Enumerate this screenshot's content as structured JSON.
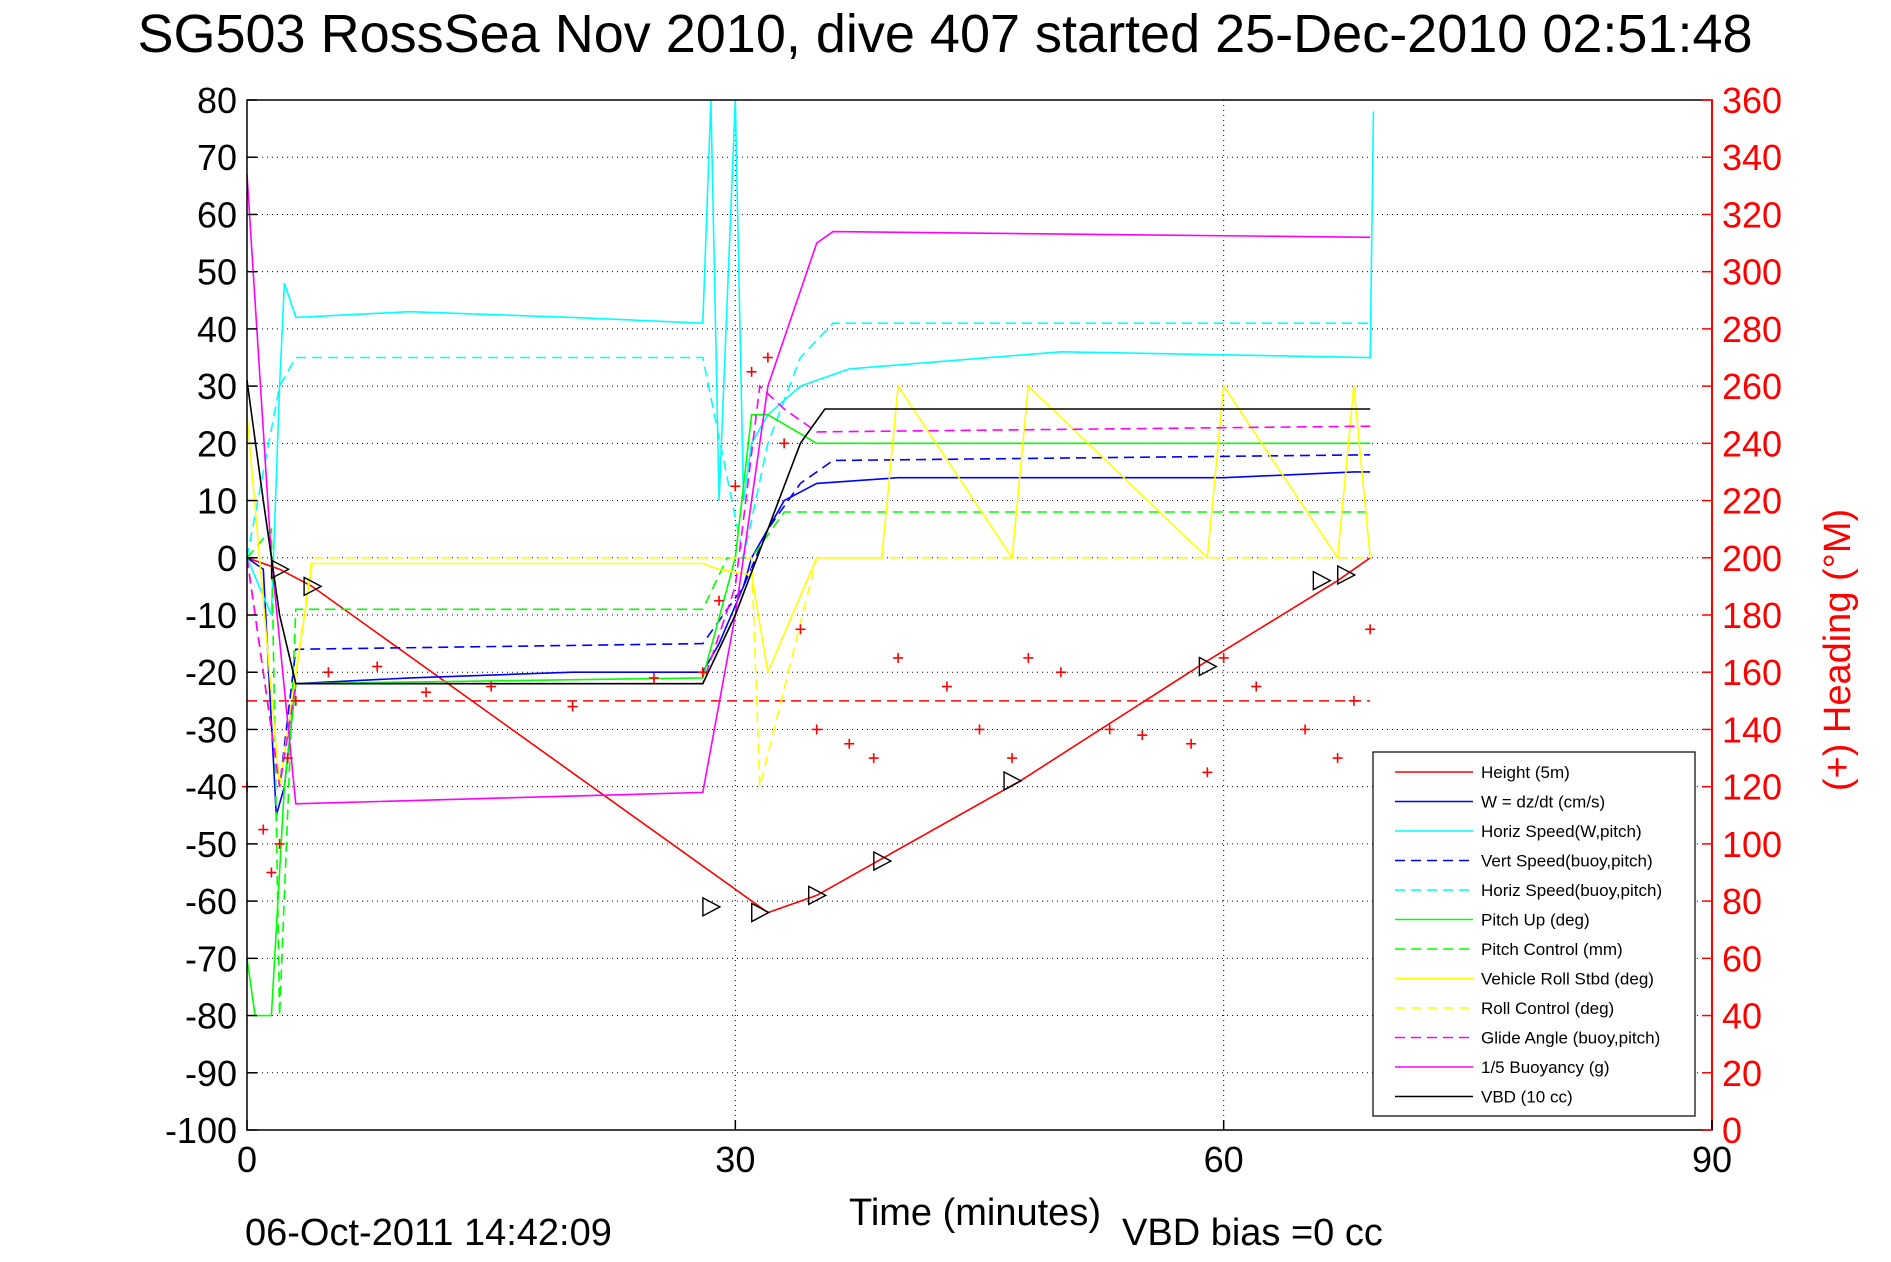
{
  "chart_data": {
    "type": "line",
    "title": "SG503 RossSea Nov 2010, dive 407 started 25-Dec-2010 02:51:48",
    "xlabel": "Time (minutes)",
    "ylabel": "",
    "ylabel_right": "(+) Heading (°M)",
    "xlim": [
      0,
      90
    ],
    "ylim": [
      -100,
      80
    ],
    "ylim_right": [
      0,
      360
    ],
    "x_ticks": [
      "0",
      "30",
      "60",
      "90"
    ],
    "y_ticks": [
      "80",
      "70",
      "60",
      "50",
      "40",
      "30",
      "20",
      "10",
      "0",
      "-10",
      "-20",
      "-30",
      "-40",
      "-50",
      "-60",
      "-70",
      "-80",
      "-90",
      "-100"
    ],
    "y_ticks_right": [
      "360",
      "340",
      "320",
      "300",
      "280",
      "260",
      "240",
      "220",
      "200",
      "180",
      "160",
      "140",
      "120",
      "100",
      "80",
      "60",
      "40",
      "20",
      "0"
    ],
    "grid": true,
    "legend_position": "bottom-right",
    "footer_date": "06-Oct-2011 14:42:09",
    "footer_note": "VBD bias =0 cc",
    "colors": {
      "red": "#ff0000",
      "blue": "#0000ff",
      "cyan": "#00ffff",
      "green": "#00ff00",
      "yellow": "#ffff00",
      "magenta": "#ff00ff",
      "black": "#000000"
    },
    "series": [
      {
        "name": "Height (5m)",
        "color": "#ff0000",
        "style": "solid",
        "x": [
          0,
          2,
          4,
          32,
          35,
          47.5,
          59,
          67,
          69
        ],
        "y": [
          0,
          -2,
          -5,
          -62,
          -59,
          -39,
          -18,
          -4,
          0
        ]
      },
      {
        "name": "W = dz/dt (cm/s)",
        "color": "#0000ff",
        "style": "solid",
        "x": [
          0,
          1,
          1.8,
          2.3,
          3,
          10,
          20,
          28,
          29,
          30.5,
          31,
          32,
          33,
          35,
          40,
          50,
          60,
          68,
          69
        ],
        "y": [
          0,
          -2,
          -45,
          -40,
          -22,
          -21,
          -20,
          -20,
          -15,
          -5,
          0,
          5,
          10,
          13,
          14,
          14,
          14,
          15,
          15
        ]
      },
      {
        "name": "Horiz Speed(W,pitch)",
        "color": "#00ffff",
        "style": "solid",
        "x": [
          0,
          1.5,
          2,
          2.3,
          3,
          10,
          20,
          28,
          28.5,
          29,
          30,
          30.5,
          31,
          32,
          34,
          37,
          50,
          69,
          69.2
        ],
        "y": [
          0,
          -10,
          30,
          48,
          42,
          43,
          42,
          41,
          80,
          10,
          80,
          10,
          20,
          25,
          30,
          33,
          36,
          35,
          78
        ]
      },
      {
        "name": "Vert Speed(buoy,pitch)",
        "color": "#0000ff",
        "style": "dashed",
        "x": [
          0,
          2,
          3,
          28,
          30.5,
          32,
          34,
          36,
          69
        ],
        "y": [
          0,
          -40,
          -16,
          -15,
          -5,
          5,
          13,
          17,
          18
        ]
      },
      {
        "name": "Horiz Speed(buoy,pitch)",
        "color": "#00ffff",
        "style": "dashed",
        "x": [
          0,
          2,
          3,
          28,
          30.5,
          32,
          34,
          36,
          69
        ],
        "y": [
          0,
          30,
          35,
          35,
          0,
          20,
          35,
          41,
          41
        ]
      },
      {
        "name": "Pitch Up (deg)",
        "color": "#00ff00",
        "style": "solid",
        "x": [
          0,
          0.5,
          1.5,
          2.3,
          3,
          28,
          30,
          31,
          32,
          35,
          69
        ],
        "y": [
          -70,
          -80,
          -80,
          -40,
          -22,
          -21,
          0,
          25,
          25,
          20,
          20
        ]
      },
      {
        "name": "Pitch Control (mm)",
        "color": "#00ff00",
        "style": "dashed",
        "x": [
          0,
          1.5,
          2,
          3,
          28,
          29.5,
          31,
          33,
          69
        ],
        "y": [
          0,
          5,
          -80,
          -9,
          -9,
          0,
          0,
          8,
          8
        ]
      },
      {
        "name": "Vehicle Roll Stbd (deg)",
        "color": "#ffff00",
        "style": "solid",
        "x": [
          0,
          2,
          4,
          28,
          29,
          31,
          32,
          35,
          39,
          40,
          47,
          48,
          59,
          60,
          67,
          68,
          69
        ],
        "y": [
          25,
          -40,
          -1,
          -1,
          -2,
          -3,
          -20,
          0,
          0,
          30,
          0,
          30,
          0,
          30,
          0,
          30,
          0
        ]
      },
      {
        "name": "Roll Control (deg)",
        "color": "#ffff00",
        "style": "dashed",
        "x": [
          0,
          2,
          4,
          31,
          31.5,
          35,
          69
        ],
        "y": [
          0,
          -40,
          0,
          0,
          -40,
          0,
          0
        ]
      },
      {
        "name": "Glide Angle (buoy,pitch)",
        "color": "#ff00ff",
        "style": "dashed",
        "x": [
          0,
          2,
          3,
          28,
          30,
          31.5,
          33,
          35,
          69
        ],
        "y": [
          0,
          -40,
          -22,
          -22,
          -5,
          30,
          26,
          22,
          23
        ]
      },
      {
        "name": "1/5 Buoyancy (g)",
        "color": "#ff00ff",
        "style": "solid",
        "x": [
          0,
          1.5,
          3,
          28,
          30,
          32,
          35,
          36,
          69
        ],
        "y": [
          67,
          0,
          -43,
          -41,
          -10,
          30,
          55,
          57,
          56
        ]
      },
      {
        "name": "VBD (10 cc)",
        "color": "#000000",
        "style": "solid",
        "x": [
          0,
          1,
          2,
          3,
          28,
          30,
          32,
          34,
          35.5,
          69
        ],
        "y": [
          31,
          10,
          -10,
          -22,
          -22,
          -10,
          5,
          20,
          26,
          26
        ]
      }
    ],
    "heading_points": {
      "color": "#ff0000",
      "style": "markers",
      "x": [
        0,
        1,
        1.5,
        2,
        2.5,
        3,
        5,
        8,
        11,
        15,
        20,
        25,
        28,
        29,
        30,
        31,
        32,
        33,
        34,
        35,
        37,
        38.5,
        40,
        43,
        45,
        47,
        48,
        50,
        53,
        55,
        58,
        59,
        60,
        62,
        65,
        67,
        68,
        69
      ],
      "y": [
        120,
        105,
        90,
        100,
        130,
        150,
        160,
        162,
        153,
        155,
        148,
        158,
        160,
        185,
        225,
        265,
        270,
        240,
        175,
        140,
        135,
        130,
        165,
        155,
        140,
        130,
        165,
        160,
        140,
        138,
        135,
        125,
        165,
        155,
        140,
        130,
        150,
        175
      ]
    },
    "vehicle_markers": {
      "color": "#000000",
      "x": [
        2,
        4,
        28.5,
        31.5,
        35,
        39,
        47,
        59,
        66,
        67.5
      ],
      "y": [
        -2,
        -5,
        -61,
        -62,
        -59,
        -53,
        -39,
        -19,
        -4,
        -3
      ]
    },
    "reference_lines": [
      {
        "axis": "right",
        "value": 150,
        "color": "#ff0000",
        "style": "dashed"
      }
    ]
  }
}
